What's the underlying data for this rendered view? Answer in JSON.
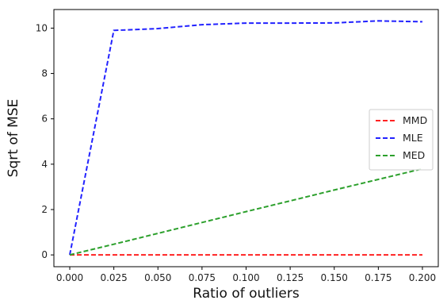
{
  "chart_data": {
    "type": "line",
    "title": "",
    "xlabel": "Ratio of outliers",
    "ylabel": "Sqrt of MSE",
    "xlim": [
      -0.009,
      0.209
    ],
    "ylim": [
      -0.52,
      10.82
    ],
    "x_ticks": [
      0.0,
      0.025,
      0.05,
      0.075,
      0.1,
      0.125,
      0.15,
      0.175,
      0.2
    ],
    "x_tick_labels": [
      "0.000",
      "0.025",
      "0.050",
      "0.075",
      "0.100",
      "0.125",
      "0.150",
      "0.175",
      "0.200"
    ],
    "y_ticks": [
      0,
      2,
      4,
      6,
      8,
      10
    ],
    "y_tick_labels": [
      "0",
      "2",
      "4",
      "6",
      "8",
      "10"
    ],
    "grid": false,
    "legend_position": "center-right",
    "series": [
      {
        "name": "MMD",
        "color": "#ff2222",
        "style": "dashed",
        "x": [
          0.0,
          0.025,
          0.05,
          0.075,
          0.1,
          0.125,
          0.15,
          0.175,
          0.2
        ],
        "y": [
          0.0,
          0.0,
          0.0,
          0.0,
          0.0,
          0.0,
          0.0,
          0.0,
          0.0
        ]
      },
      {
        "name": "MLE",
        "color": "#2222ff",
        "style": "dashed",
        "x": [
          0.0,
          0.025,
          0.05,
          0.075,
          0.1,
          0.125,
          0.15,
          0.175,
          0.2
        ],
        "y": [
          0.0,
          9.9,
          9.98,
          10.15,
          10.22,
          10.22,
          10.23,
          10.32,
          10.28
        ]
      },
      {
        "name": "MED",
        "color": "#2ca02c",
        "style": "dashed",
        "x": [
          0.0,
          0.025,
          0.05,
          0.075,
          0.1,
          0.125,
          0.15,
          0.175,
          0.2
        ],
        "y": [
          0.0,
          0.47,
          0.95,
          1.43,
          1.91,
          2.38,
          2.86,
          3.33,
          3.8
        ]
      }
    ]
  }
}
